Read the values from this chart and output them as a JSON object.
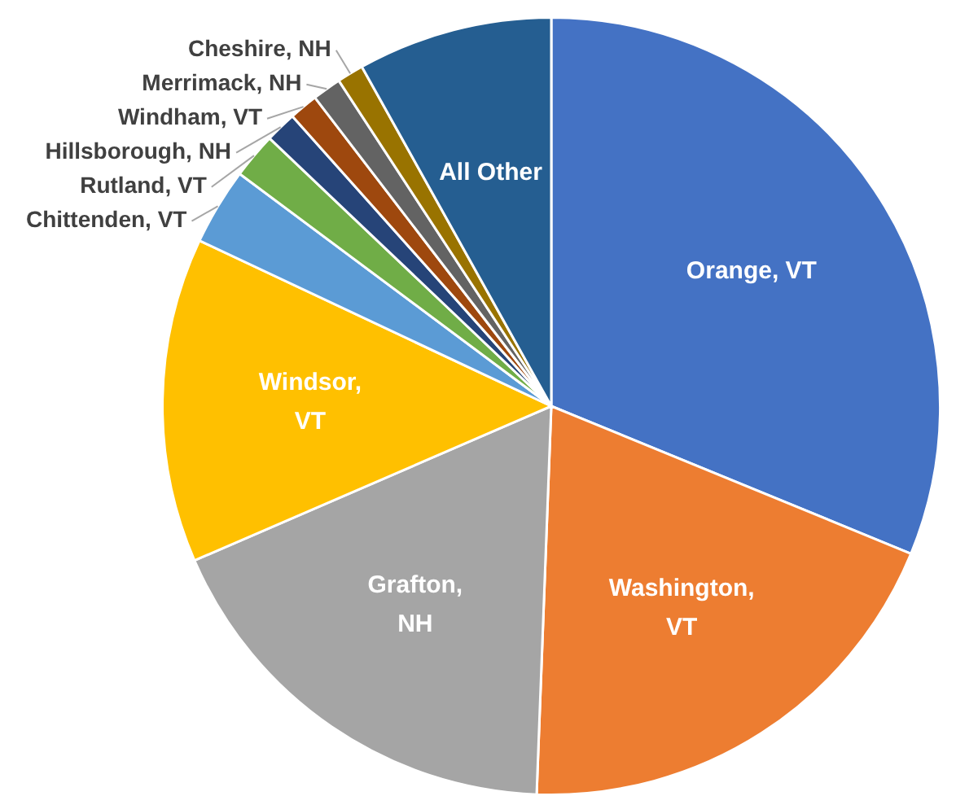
{
  "chart_data": {
    "type": "pie",
    "categories": [
      "Orange, VT",
      "Washington, VT",
      "Grafton, NH",
      "Windsor, VT",
      "Chittenden, VT",
      "Rutland, VT",
      "Hillsborough, NH",
      "Windham, VT",
      "Merrimack, NH",
      "Cheshire, NH",
      "All Other"
    ],
    "values": [
      31.2,
      19.4,
      17.9,
      13.5,
      3.2,
      1.9,
      1.3,
      1.2,
      1.2,
      1.1,
      8.1
    ],
    "colors": [
      "#4472c4",
      "#ed7d31",
      "#a5a5a5",
      "#ffc000",
      "#5b9bd5",
      "#70ad47",
      "#264478",
      "#9e480e",
      "#636363",
      "#997300",
      "#255e91"
    ],
    "legend": false
  }
}
